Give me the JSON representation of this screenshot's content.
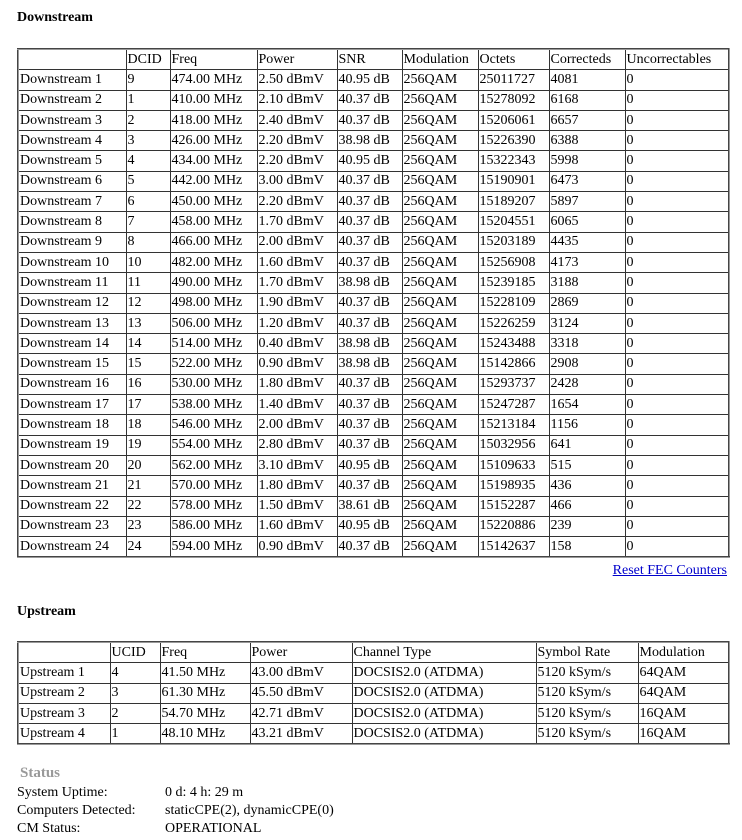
{
  "downstream": {
    "title": "Downstream",
    "headers": [
      "DCID",
      "Freq",
      "Power",
      "SNR",
      "Modulation",
      "Octets",
      "Correcteds",
      "Uncorrectables"
    ],
    "rows": [
      [
        "Downstream 1",
        "9",
        "474.00 MHz",
        "2.50 dBmV",
        "40.95 dB",
        "256QAM",
        "25011727",
        "4081",
        "0"
      ],
      [
        "Downstream 2",
        "1",
        "410.00 MHz",
        "2.10 dBmV",
        "40.37 dB",
        "256QAM",
        "15278092",
        "6168",
        "0"
      ],
      [
        "Downstream 3",
        "2",
        "418.00 MHz",
        "2.40 dBmV",
        "40.37 dB",
        "256QAM",
        "15206061",
        "6657",
        "0"
      ],
      [
        "Downstream 4",
        "3",
        "426.00 MHz",
        "2.20 dBmV",
        "38.98 dB",
        "256QAM",
        "15226390",
        "6388",
        "0"
      ],
      [
        "Downstream 5",
        "4",
        "434.00 MHz",
        "2.20 dBmV",
        "40.95 dB",
        "256QAM",
        "15322343",
        "5998",
        "0"
      ],
      [
        "Downstream 6",
        "5",
        "442.00 MHz",
        "3.00 dBmV",
        "40.37 dB",
        "256QAM",
        "15190901",
        "6473",
        "0"
      ],
      [
        "Downstream 7",
        "6",
        "450.00 MHz",
        "2.20 dBmV",
        "40.37 dB",
        "256QAM",
        "15189207",
        "5897",
        "0"
      ],
      [
        "Downstream 8",
        "7",
        "458.00 MHz",
        "1.70 dBmV",
        "40.37 dB",
        "256QAM",
        "15204551",
        "6065",
        "0"
      ],
      [
        "Downstream 9",
        "8",
        "466.00 MHz",
        "2.00 dBmV",
        "40.37 dB",
        "256QAM",
        "15203189",
        "4435",
        "0"
      ],
      [
        "Downstream 10",
        "10",
        "482.00 MHz",
        "1.60 dBmV",
        "40.37 dB",
        "256QAM",
        "15256908",
        "4173",
        "0"
      ],
      [
        "Downstream 11",
        "11",
        "490.00 MHz",
        "1.70 dBmV",
        "38.98 dB",
        "256QAM",
        "15239185",
        "3188",
        "0"
      ],
      [
        "Downstream 12",
        "12",
        "498.00 MHz",
        "1.90 dBmV",
        "40.37 dB",
        "256QAM",
        "15228109",
        "2869",
        "0"
      ],
      [
        "Downstream 13",
        "13",
        "506.00 MHz",
        "1.20 dBmV",
        "40.37 dB",
        "256QAM",
        "15226259",
        "3124",
        "0"
      ],
      [
        "Downstream 14",
        "14",
        "514.00 MHz",
        "0.40 dBmV",
        "38.98 dB",
        "256QAM",
        "15243488",
        "3318",
        "0"
      ],
      [
        "Downstream 15",
        "15",
        "522.00 MHz",
        "0.90 dBmV",
        "38.98 dB",
        "256QAM",
        "15142866",
        "2908",
        "0"
      ],
      [
        "Downstream 16",
        "16",
        "530.00 MHz",
        "1.80 dBmV",
        "40.37 dB",
        "256QAM",
        "15293737",
        "2428",
        "0"
      ],
      [
        "Downstream 17",
        "17",
        "538.00 MHz",
        "1.40 dBmV",
        "40.37 dB",
        "256QAM",
        "15247287",
        "1654",
        "0"
      ],
      [
        "Downstream 18",
        "18",
        "546.00 MHz",
        "2.00 dBmV",
        "40.37 dB",
        "256QAM",
        "15213184",
        "1156",
        "0"
      ],
      [
        "Downstream 19",
        "19",
        "554.00 MHz",
        "2.80 dBmV",
        "40.37 dB",
        "256QAM",
        "15032956",
        "641",
        "0"
      ],
      [
        "Downstream 20",
        "20",
        "562.00 MHz",
        "3.10 dBmV",
        "40.95 dB",
        "256QAM",
        "15109633",
        "515",
        "0"
      ],
      [
        "Downstream 21",
        "21",
        "570.00 MHz",
        "1.80 dBmV",
        "40.37 dB",
        "256QAM",
        "15198935",
        "436",
        "0"
      ],
      [
        "Downstream 22",
        "22",
        "578.00 MHz",
        "1.50 dBmV",
        "38.61 dB",
        "256QAM",
        "15152287",
        "466",
        "0"
      ],
      [
        "Downstream 23",
        "23",
        "586.00 MHz",
        "1.60 dBmV",
        "40.95 dB",
        "256QAM",
        "15220886",
        "239",
        "0"
      ],
      [
        "Downstream 24",
        "24",
        "594.00 MHz",
        "0.90 dBmV",
        "40.37 dB",
        "256QAM",
        "15142637",
        "158",
        "0"
      ]
    ],
    "reset_link": "Reset FEC Counters"
  },
  "upstream": {
    "title": "Upstream",
    "headers": [
      "UCID",
      "Freq",
      "Power",
      "Channel Type",
      "Symbol Rate",
      "Modulation"
    ],
    "rows": [
      [
        "Upstream 1",
        "4",
        "41.50 MHz",
        "43.00 dBmV",
        "DOCSIS2.0 (ATDMA)",
        "5120 kSym/s",
        "64QAM"
      ],
      [
        "Upstream 2",
        "3",
        "61.30 MHz",
        "45.50 dBmV",
        "DOCSIS2.0 (ATDMA)",
        "5120 kSym/s",
        "64QAM"
      ],
      [
        "Upstream 3",
        "2",
        "54.70 MHz",
        "42.71 dBmV",
        "DOCSIS2.0 (ATDMA)",
        "5120 kSym/s",
        "16QAM"
      ],
      [
        "Upstream 4",
        "1",
        "48.10 MHz",
        "43.21 dBmV",
        "DOCSIS2.0 (ATDMA)",
        "5120 kSym/s",
        "16QAM"
      ]
    ]
  },
  "status": {
    "title": "Status",
    "items": [
      {
        "label": "System Uptime:",
        "value": "0 d: 4 h: 29 m"
      },
      {
        "label": "Computers Detected:",
        "value": "staticCPE(2), dynamicCPE(0)"
      },
      {
        "label": "CM Status:",
        "value": "OPERATIONAL"
      }
    ]
  }
}
